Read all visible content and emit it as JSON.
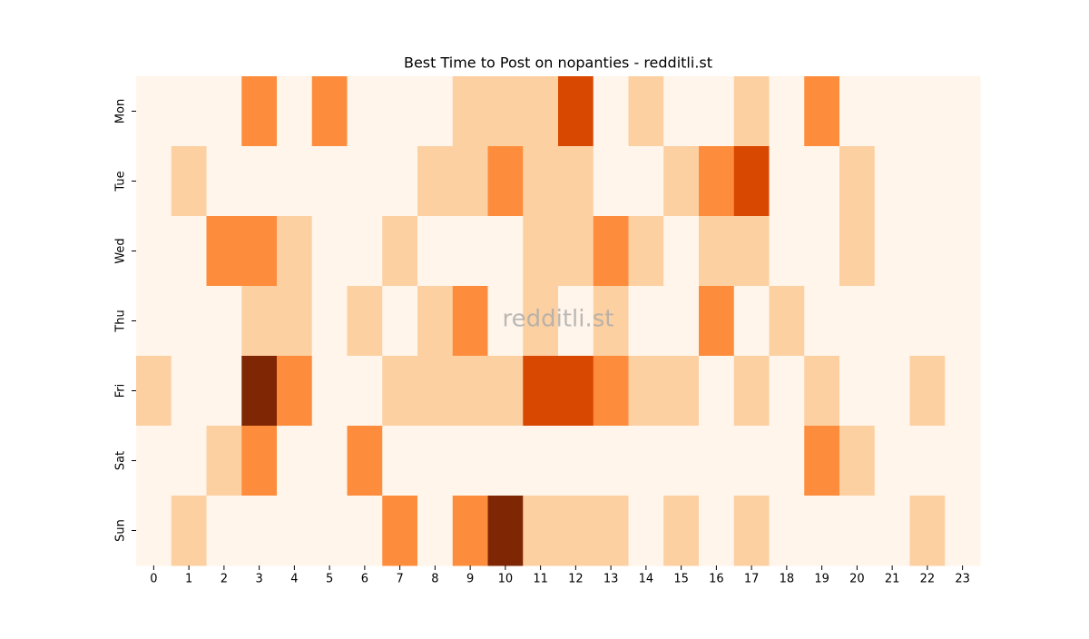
{
  "chart_data": {
    "type": "heatmap",
    "title": "Best Time to Post on nopanties - redditli.st",
    "watermark": "redditli.st",
    "x": [
      0,
      1,
      2,
      3,
      4,
      5,
      6,
      7,
      8,
      9,
      10,
      11,
      12,
      13,
      14,
      15,
      16,
      17,
      18,
      19,
      20,
      21,
      22,
      23
    ],
    "y": [
      "Mon",
      "Tue",
      "Wed",
      "Thu",
      "Fri",
      "Sat",
      "Sun"
    ],
    "values": [
      [
        0,
        0,
        0,
        2,
        0,
        2,
        0,
        0,
        0,
        1,
        1,
        1,
        3,
        0,
        1,
        0,
        0,
        1,
        0,
        2,
        0,
        0,
        0,
        0
      ],
      [
        0,
        1,
        0,
        0,
        0,
        0,
        0,
        0,
        1,
        1,
        2,
        1,
        1,
        0,
        0,
        1,
        2,
        3,
        0,
        0,
        1,
        0,
        0,
        0
      ],
      [
        0,
        0,
        2,
        2,
        1,
        0,
        0,
        1,
        0,
        0,
        0,
        1,
        1,
        2,
        1,
        0,
        1,
        1,
        0,
        0,
        1,
        0,
        0,
        0
      ],
      [
        0,
        0,
        0,
        1,
        1,
        0,
        1,
        0,
        1,
        2,
        0,
        1,
        0,
        1,
        0,
        0,
        2,
        0,
        1,
        0,
        0,
        0,
        0,
        0
      ],
      [
        1,
        0,
        0,
        4,
        2,
        0,
        0,
        1,
        1,
        1,
        1,
        3,
        3,
        2,
        1,
        1,
        0,
        1,
        0,
        1,
        0,
        0,
        1,
        0
      ],
      [
        0,
        0,
        1,
        2,
        0,
        0,
        2,
        0,
        0,
        0,
        0,
        0,
        0,
        0,
        0,
        0,
        0,
        0,
        0,
        2,
        1,
        0,
        0,
        0
      ],
      [
        0,
        1,
        0,
        0,
        0,
        0,
        0,
        2,
        0,
        2,
        4,
        1,
        1,
        1,
        0,
        1,
        0,
        1,
        0,
        0,
        0,
        0,
        1,
        0
      ]
    ],
    "colors": [
      "#fff5eb",
      "#fdd0a2",
      "#fd8d3c",
      "#d94801",
      "#7f2704"
    ]
  }
}
